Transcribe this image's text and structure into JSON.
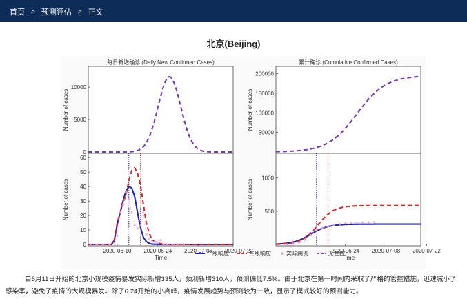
{
  "breadcrumb": {
    "items": [
      "首页",
      "预测评估",
      "正文"
    ],
    "separator": ">"
  },
  "page_title": "北京(Beijing)",
  "caption": "自6月11日开始的北京小规模疫情暴发实际新增335人，预测新增310人，预测偏低7.5%。由于北京在第一时间内采取了严格的管控措施，迅速减小了感染率，避免了疫情的大规模暴发。除了6.24开始的小高峰，疫情发展趋势与预测较为一致，显示了模式较好的预测能力。",
  "colors": {
    "level2": "#1f23a8",
    "level3": "#d42a2a",
    "actual": "#e7a3e2",
    "uncontrolled": "#7a35b8",
    "topbar": "#0d2c57"
  },
  "legend": [
    {
      "key": "level2",
      "label": "二级响应",
      "style": "line"
    },
    {
      "key": "level3",
      "label": "三级响应",
      "style": "dash"
    },
    {
      "key": "actual",
      "label": "实际病例",
      "style": "dot"
    },
    {
      "key": "uncontrolled",
      "label": "无管控",
      "style": "dash"
    }
  ],
  "chart_data": [
    {
      "type": "line",
      "title": "每日新增确诊 (Daily New Confirmed Cases)",
      "xlabel": "Time",
      "ylabel_top": "Number of cases",
      "ylabel_bottom": "Number of cases",
      "top_yticks": [
        "0",
        "5000",
        "10000"
      ],
      "top_ylim": [
        0,
        13000
      ],
      "bottom_yticks": [
        "0",
        "10",
        "20",
        "30",
        "40",
        "50",
        "60"
      ],
      "bottom_ylim": [
        0,
        62
      ],
      "xticks": [
        "2020-06-10",
        "2020-06-24",
        "2020-07-08",
        "2020-07-22"
      ],
      "x_range_days": [
        -10,
        40
      ],
      "vlines_day": [
        4,
        8
      ],
      "series": [
        {
          "name": "无管控",
          "panel": "top",
          "peak_day": 18,
          "peak_value": 11600,
          "width": 5.5
        },
        {
          "name": "二级响应",
          "panel": "bottom",
          "points": [
            [
              -2,
              0
            ],
            [
              -1,
              3
            ],
            [
              0,
              14
            ],
            [
              1,
              22
            ],
            [
              2,
              30
            ],
            [
              3,
              37
            ],
            [
              4,
              40
            ],
            [
              5,
              39
            ],
            [
              6,
              33
            ],
            [
              7,
              22
            ],
            [
              8,
              12
            ],
            [
              9,
              5
            ],
            [
              10,
              2
            ],
            [
              11,
              0.8
            ],
            [
              12,
              0.2
            ],
            [
              16,
              0
            ],
            [
              40,
              0
            ]
          ]
        },
        {
          "name": "三级响应",
          "panel": "bottom",
          "points": [
            [
              -2,
              0
            ],
            [
              -1,
              3
            ],
            [
              0,
              15
            ],
            [
              1,
              22
            ],
            [
              2,
              29
            ],
            [
              3,
              34
            ],
            [
              4,
              44
            ],
            [
              5,
              51
            ],
            [
              6,
              53
            ],
            [
              7,
              49
            ],
            [
              8,
              41
            ],
            [
              9,
              28
            ],
            [
              10,
              15
            ],
            [
              11,
              8
            ],
            [
              12,
              3
            ],
            [
              14,
              1
            ],
            [
              16,
              0
            ],
            [
              40,
              0
            ]
          ]
        },
        {
          "name": "实际病例",
          "panel": "bottom",
          "points": [
            [
              -9,
              0
            ],
            [
              -7,
              0
            ],
            [
              -5,
              0
            ],
            [
              -3,
              0
            ],
            [
              -1,
              1
            ],
            [
              0,
              6
            ],
            [
              1,
              22
            ],
            [
              2,
              27
            ],
            [
              3,
              36
            ],
            [
              4,
              31
            ],
            [
              5,
              22
            ],
            [
              6,
              13
            ],
            [
              7,
              11
            ],
            [
              8,
              13
            ],
            [
              9,
              22
            ],
            [
              10,
              7
            ],
            [
              11,
              4
            ],
            [
              12,
              2
            ],
            [
              13,
              2
            ],
            [
              14,
              1
            ],
            [
              15,
              3
            ],
            [
              16,
              0
            ],
            [
              17,
              0
            ],
            [
              19,
              0
            ],
            [
              21,
              0
            ],
            [
              23,
              0
            ]
          ]
        }
      ]
    },
    {
      "type": "line",
      "title": "累计确诊 (Cumulative Confirmed Cases)",
      "xlabel": "Time",
      "ylabel_top": "Number of cases",
      "ylabel_bottom": "Number of cases",
      "top_yticks": [
        "50000",
        "100000",
        "150000",
        "200000"
      ],
      "top_ylim": [
        0,
        215000
      ],
      "bottom_yticks": [
        "500",
        "1000"
      ],
      "bottom_ylim": [
        0,
        1350
      ],
      "xticks": [
        "2020-06-24",
        "2020-07-08",
        "2020-07-22"
      ],
      "x_range_days": [
        -10,
        40
      ],
      "vlines_day": [
        4,
        8
      ],
      "series": [
        {
          "name": "无管控",
          "panel": "top",
          "midpoint_day": 18,
          "max": 195000,
          "width": 5
        },
        {
          "name": "二级响应",
          "panel": "bottom",
          "midpoint_day": 2,
          "max": 305,
          "width": 3
        },
        {
          "name": "三级响应",
          "panel": "bottom",
          "midpoint_day": 4.5,
          "max": 585,
          "width": 2.8
        },
        {
          "name": "实际病例",
          "panel": "bottom",
          "points": [
            [
              -6,
              2
            ],
            [
              -4,
              10
            ],
            [
              -2,
              30
            ],
            [
              0,
              70
            ],
            [
              2,
              140
            ],
            [
              4,
              210
            ],
            [
              6,
              245
            ],
            [
              8,
              270
            ],
            [
              10,
              290
            ],
            [
              12,
              305
            ],
            [
              14,
              315
            ],
            [
              16,
              320
            ],
            [
              18,
              325
            ],
            [
              20,
              330
            ],
            [
              22,
              333
            ],
            [
              24,
              335
            ]
          ]
        }
      ]
    }
  ]
}
